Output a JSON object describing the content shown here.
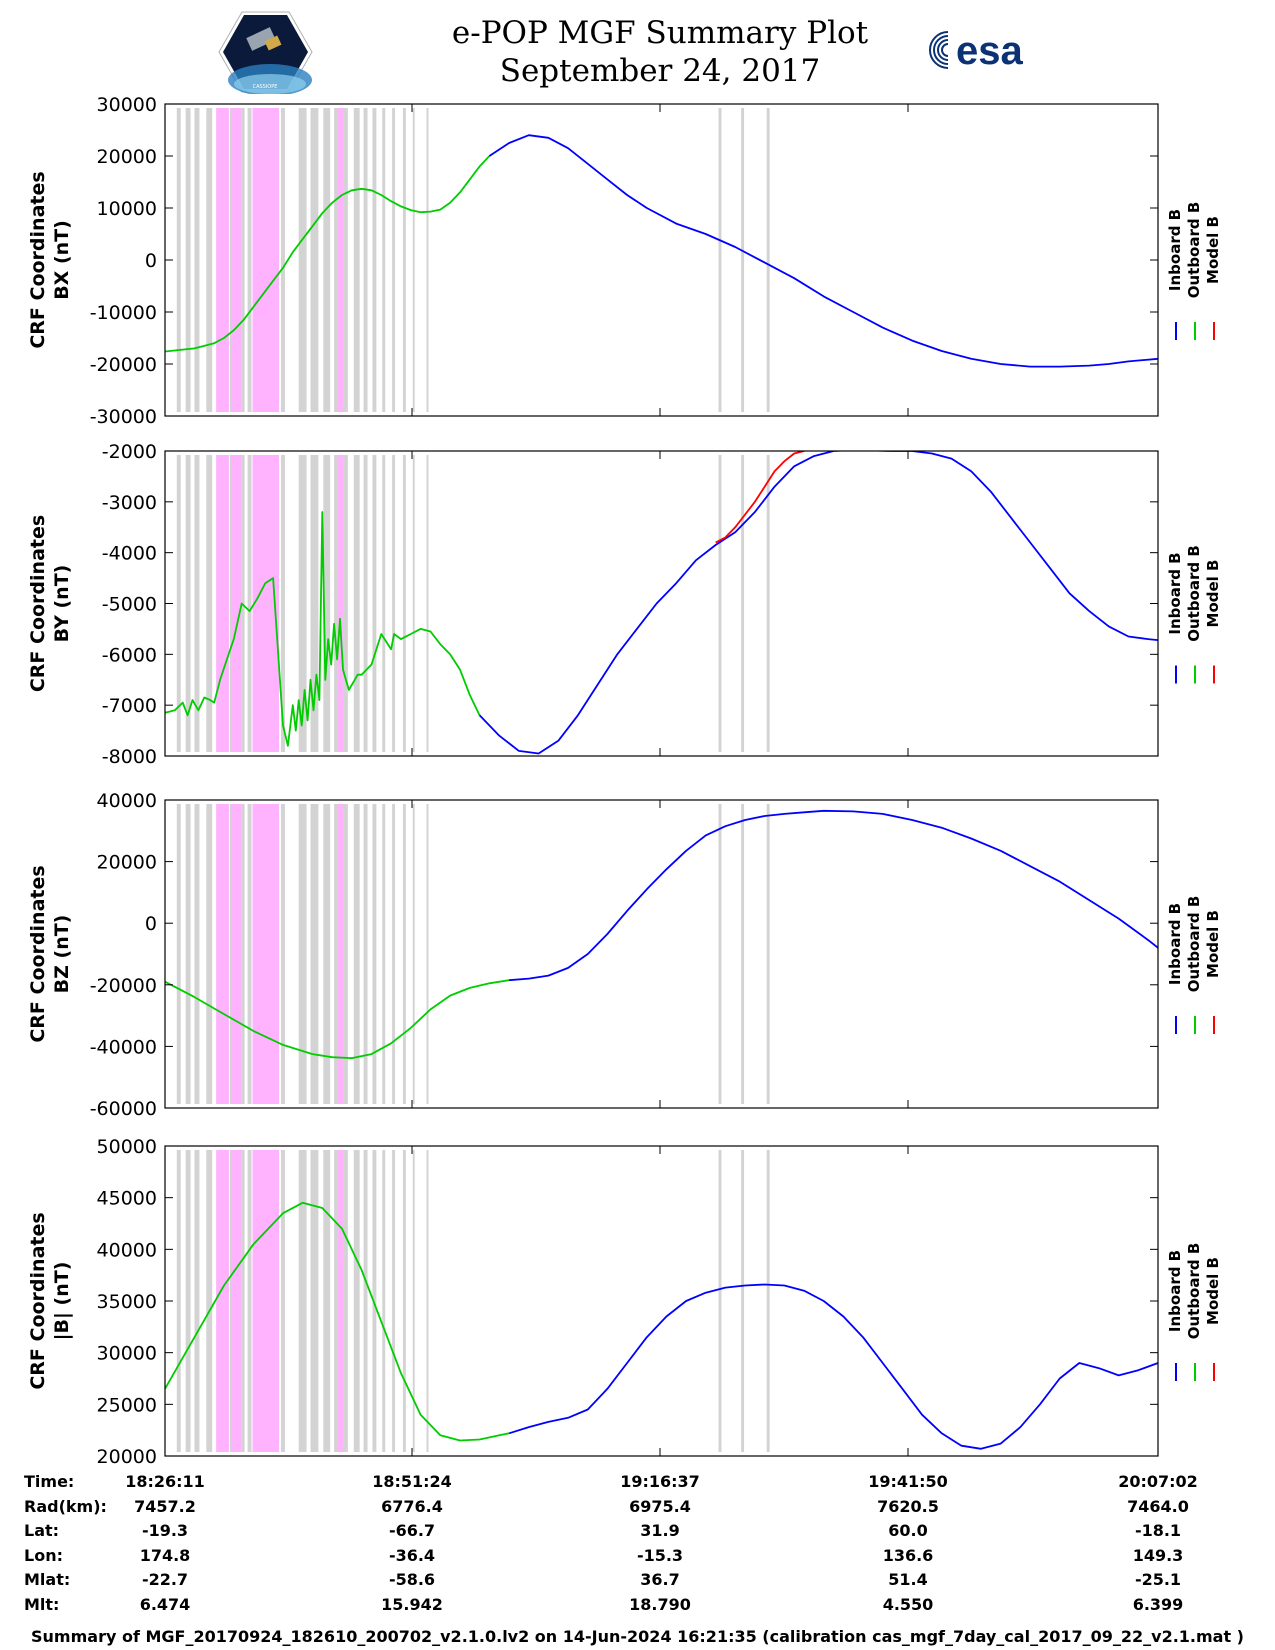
{
  "header": {
    "title_line1": "e-POP MGF Summary Plot",
    "title_line2": "September 24, 2017",
    "logo_left_text": "CASSIOPE",
    "logo_right_text": "esa"
  },
  "colors": {
    "inboard": "#0000ff",
    "outboard": "#00cc00",
    "model": "#ff0000",
    "gray_band": "#d3d3d3",
    "magenta_band": "#ffb3ff"
  },
  "chart_data": [
    {
      "type": "line",
      "ylabel_line1": "CRF Coordinates",
      "ylabel_line2": "BX (nT)",
      "ylim": [
        -30000,
        30000
      ],
      "yticks": [
        30000,
        20000,
        10000,
        0,
        -10000,
        -20000,
        -30000
      ],
      "ytick_labels": [
        "30000",
        "20000",
        "10000",
        "0",
        "-10000",
        "-20000",
        "-30000"
      ],
      "xlim_min": [
        0,
        101
      ],
      "series": [
        {
          "name": "Outboard B",
          "color": "outboard",
          "x": [
            0,
            3,
            5,
            6,
            7,
            8,
            9,
            10,
            11,
            12,
            13,
            14,
            15,
            16,
            17,
            18,
            19,
            20,
            21,
            22,
            23,
            24,
            25,
            26,
            27,
            28,
            29,
            30,
            31,
            32,
            33
          ],
          "y": [
            -17600,
            -17000,
            -16000,
            -15000,
            -13500,
            -11500,
            -9000,
            -6500,
            -4000,
            -1500,
            1500,
            4000,
            6500,
            9000,
            11000,
            12500,
            13400,
            13700,
            13400,
            12500,
            11300,
            10300,
            9600,
            9200,
            9300,
            9700,
            11000,
            13000,
            15500,
            18000,
            20000
          ]
        },
        {
          "name": "Inboard B",
          "color": "inboard",
          "x": [
            33,
            35,
            37,
            39,
            41,
            43,
            45,
            47,
            49,
            52,
            55,
            58,
            61,
            64,
            67,
            70,
            73,
            76,
            79,
            82,
            85,
            88,
            91,
            94,
            96,
            98,
            101
          ],
          "y": [
            20000,
            22500,
            24000,
            23500,
            21500,
            18500,
            15500,
            12500,
            10000,
            7000,
            5000,
            2500,
            -500,
            -3500,
            -7000,
            -10000,
            -13000,
            -15500,
            -17500,
            -19000,
            -20000,
            -20500,
            -20500,
            -20300,
            -20000,
            -19500,
            -19000
          ]
        }
      ]
    },
    {
      "type": "line",
      "ylabel_line1": "CRF Coordinates",
      "ylabel_line2": "BY (nT)",
      "ylim": [
        -8000,
        -2000
      ],
      "yticks": [
        -2000,
        -3000,
        -4000,
        -5000,
        -6000,
        -7000,
        -8000
      ],
      "ytick_labels": [
        "-2000",
        "-3000",
        "-4000",
        "-5000",
        "-6000",
        "-7000",
        "-8000"
      ],
      "xlim_min": [
        0,
        101
      ],
      "series": [
        {
          "name": "Outboard B",
          "color": "outboard",
          "x": [
            0,
            1,
            1.8,
            2.3,
            2.8,
            3.4,
            4,
            4.6,
            5,
            5.6,
            6.3,
            7,
            7.8,
            8.6,
            9.4,
            10.2,
            11,
            12,
            12.5,
            13,
            13.3,
            13.6,
            13.9,
            14.2,
            14.5,
            14.8,
            15.1,
            15.4,
            15.7,
            16,
            16.3,
            16.6,
            16.9,
            17.2,
            17.5,
            17.8,
            18.1,
            18.4,
            18.7,
            19,
            19.3,
            19.6,
            20,
            21,
            22,
            23,
            23.3,
            24,
            25,
            26,
            27,
            28,
            29,
            30,
            31,
            32
          ],
          "y": [
            -7150,
            -7100,
            -6950,
            -7200,
            -6900,
            -7100,
            -6850,
            -6900,
            -6950,
            -6500,
            -6100,
            -5700,
            -5000,
            -5150,
            -4900,
            -4600,
            -4500,
            -7400,
            -7800,
            -7000,
            -7500,
            -6900,
            -7400,
            -6700,
            -7300,
            -6500,
            -7100,
            -6400,
            -6900,
            -3200,
            -6500,
            -5700,
            -6200,
            -5400,
            -6100,
            -5300,
            -6300,
            -6500,
            -6700,
            -6600,
            -6500,
            -6400,
            -6400,
            -6200,
            -5600,
            -5900,
            -5600,
            -5700,
            -5600,
            -5500,
            -5550,
            -5800,
            -6000,
            -6300,
            -6800,
            -7200
          ]
        },
        {
          "name": "Inboard B",
          "color": "inboard",
          "x": [
            32,
            34,
            36,
            38,
            40,
            42,
            44,
            46,
            48,
            50,
            52,
            54,
            56,
            58,
            60,
            62,
            64,
            66,
            68,
            70,
            72,
            74,
            76,
            78,
            80,
            82,
            84,
            86,
            88,
            90,
            92,
            94,
            96,
            98,
            100,
            101
          ],
          "y": [
            -7200,
            -7600,
            -7900,
            -7950,
            -7700,
            -7200,
            -6600,
            -6000,
            -5500,
            -5000,
            -4600,
            -4150,
            -3850,
            -3600,
            -3200,
            -2700,
            -2300,
            -2100,
            -2000,
            -1980,
            -1990,
            -2000,
            -2000,
            -2050,
            -2150,
            -2400,
            -2800,
            -3300,
            -3800,
            -4300,
            -4800,
            -5150,
            -5450,
            -5650,
            -5700,
            -5720
          ]
        },
        {
          "name": "Model B",
          "color": "model",
          "x": [
            56,
            57,
            58,
            59,
            60,
            61,
            62,
            63,
            64,
            65
          ],
          "y": [
            -3800,
            -3700,
            -3500,
            -3250,
            -3000,
            -2700,
            -2400,
            -2200,
            -2050,
            -2000
          ]
        }
      ]
    },
    {
      "type": "line",
      "ylabel_line1": "CRF Coordinates",
      "ylabel_line2": "BZ (nT)",
      "ylim": [
        -60000,
        40000
      ],
      "yticks": [
        40000,
        20000,
        0,
        -20000,
        -40000,
        -60000
      ],
      "ytick_labels": [
        "40000",
        "20000",
        "0",
        "-20000",
        "-40000",
        "-60000"
      ],
      "xlim_min": [
        0,
        101
      ],
      "series": [
        {
          "name": "Outboard B",
          "color": "outboard",
          "x": [
            0,
            3,
            6,
            9,
            12,
            15,
            17,
            19,
            21,
            23,
            25,
            27,
            29,
            31,
            33,
            35
          ],
          "y": [
            -19000,
            -24000,
            -29500,
            -35000,
            -39500,
            -42500,
            -43500,
            -43800,
            -42500,
            -39000,
            -34000,
            -28000,
            -23500,
            -21000,
            -19500,
            -18500
          ]
        },
        {
          "name": "Inboard B",
          "color": "inboard",
          "x": [
            35,
            37,
            39,
            41,
            43,
            45,
            47,
            49,
            51,
            53,
            55,
            57,
            59,
            61,
            63,
            65,
            67,
            70,
            73,
            76,
            79,
            82,
            85,
            88,
            91,
            94,
            97,
            100,
            101
          ],
          "y": [
            -18500,
            -18000,
            -17000,
            -14500,
            -10000,
            -3500,
            4000,
            11000,
            17500,
            23500,
            28500,
            31500,
            33500,
            34800,
            35500,
            36000,
            36500,
            36300,
            35500,
            33500,
            31000,
            27500,
            23500,
            18500,
            13500,
            7500,
            1500,
            -5500,
            -8000
          ]
        }
      ]
    },
    {
      "type": "line",
      "ylabel_line1": "CRF Coordinates",
      "ylabel_line2": "|B| (nT)",
      "ylim": [
        20000,
        50000
      ],
      "yticks": [
        50000,
        45000,
        40000,
        35000,
        30000,
        25000,
        20000
      ],
      "ytick_labels": [
        "50000",
        "45000",
        "40000",
        "35000",
        "30000",
        "25000",
        "20000"
      ],
      "xlim_min": [
        0,
        101
      ],
      "series": [
        {
          "name": "Outboard B",
          "color": "outboard",
          "x": [
            0,
            3,
            6,
            9,
            12,
            14,
            16,
            18,
            20,
            22,
            24,
            26,
            28,
            30,
            32,
            34,
            35
          ],
          "y": [
            26500,
            31500,
            36500,
            40500,
            43500,
            44500,
            44000,
            42000,
            38000,
            33000,
            28000,
            24000,
            22000,
            21500,
            21600,
            22000,
            22200
          ]
        },
        {
          "name": "Inboard B",
          "color": "inboard",
          "x": [
            35,
            37,
            39,
            41,
            43,
            45,
            47,
            49,
            51,
            53,
            55,
            57,
            59,
            61,
            63,
            65,
            67,
            69,
            71,
            73,
            75,
            77,
            79,
            81,
            83,
            85,
            87,
            89,
            91,
            93,
            95,
            97,
            99,
            101
          ],
          "y": [
            22200,
            22800,
            23300,
            23700,
            24500,
            26500,
            29000,
            31500,
            33500,
            35000,
            35800,
            36300,
            36500,
            36600,
            36500,
            36000,
            35000,
            33500,
            31500,
            29000,
            26500,
            24000,
            22200,
            21000,
            20700,
            21200,
            22800,
            25000,
            27500,
            29000,
            28500,
            27800,
            28300,
            29000
          ]
        }
      ]
    }
  ],
  "bands": {
    "gray": [
      [
        1.2,
        1.6
      ],
      [
        2.1,
        2.6
      ],
      [
        3,
        3.5
      ],
      [
        4.2,
        4.8
      ],
      [
        6.6,
        7
      ],
      [
        7.8,
        8.1
      ],
      [
        8.4,
        8.8
      ],
      [
        11.8,
        12.2
      ],
      [
        13.6,
        14.4
      ],
      [
        14.8,
        15.6
      ],
      [
        16.1,
        16.8
      ],
      [
        17.2,
        17.6
      ],
      [
        18.1,
        18.6
      ],
      [
        19.2,
        19.8
      ],
      [
        20.2,
        20.6
      ],
      [
        21.1,
        21.5
      ],
      [
        22.1,
        22.4
      ],
      [
        23.1,
        23.4
      ],
      [
        24.2,
        24.5
      ],
      [
        25.2,
        25.4
      ],
      [
        26.6,
        26.8
      ],
      [
        56.3,
        56.6
      ],
      [
        58.6,
        58.9
      ],
      [
        61.2,
        61.5
      ]
    ],
    "magenta": [
      [
        5.2,
        6.5
      ],
      [
        6.8,
        7.8
      ],
      [
        8.9,
        11.6
      ],
      [
        17.6,
        18.1
      ]
    ]
  },
  "legend": {
    "items": [
      "Inboard B",
      "Outboard B",
      "Model B"
    ]
  },
  "time_axis": {
    "labels": [
      "Time:",
      "Rad(km):",
      "Lat:",
      "Lon:",
      "Mlat:",
      "Mlt:"
    ],
    "columns": [
      {
        "values": [
          "18:26:11",
          "7457.2",
          "-19.3",
          "174.8",
          "-22.7",
          "6.474"
        ]
      },
      {
        "values": [
          "18:51:24",
          "6776.4",
          "-66.7",
          "-36.4",
          "-58.6",
          "15.942"
        ]
      },
      {
        "values": [
          "19:16:37",
          "6975.4",
          "31.9",
          "-15.3",
          "36.7",
          "18.790"
        ]
      },
      {
        "values": [
          "19:41:50",
          "7620.5",
          "60.0",
          "136.6",
          "51.4",
          "4.550"
        ]
      },
      {
        "values": [
          "20:07:02",
          "7464.0",
          "-18.1",
          "149.3",
          "-25.1",
          "6.399"
        ]
      }
    ]
  },
  "footer": {
    "text": "Summary of MGF_20170924_182610_200702_v2.1.0.lv2 on 14-Jun-2024 16:21:35 (calibration cas_mgf_7day_cal_2017_09_22_v2.1.mat )"
  }
}
